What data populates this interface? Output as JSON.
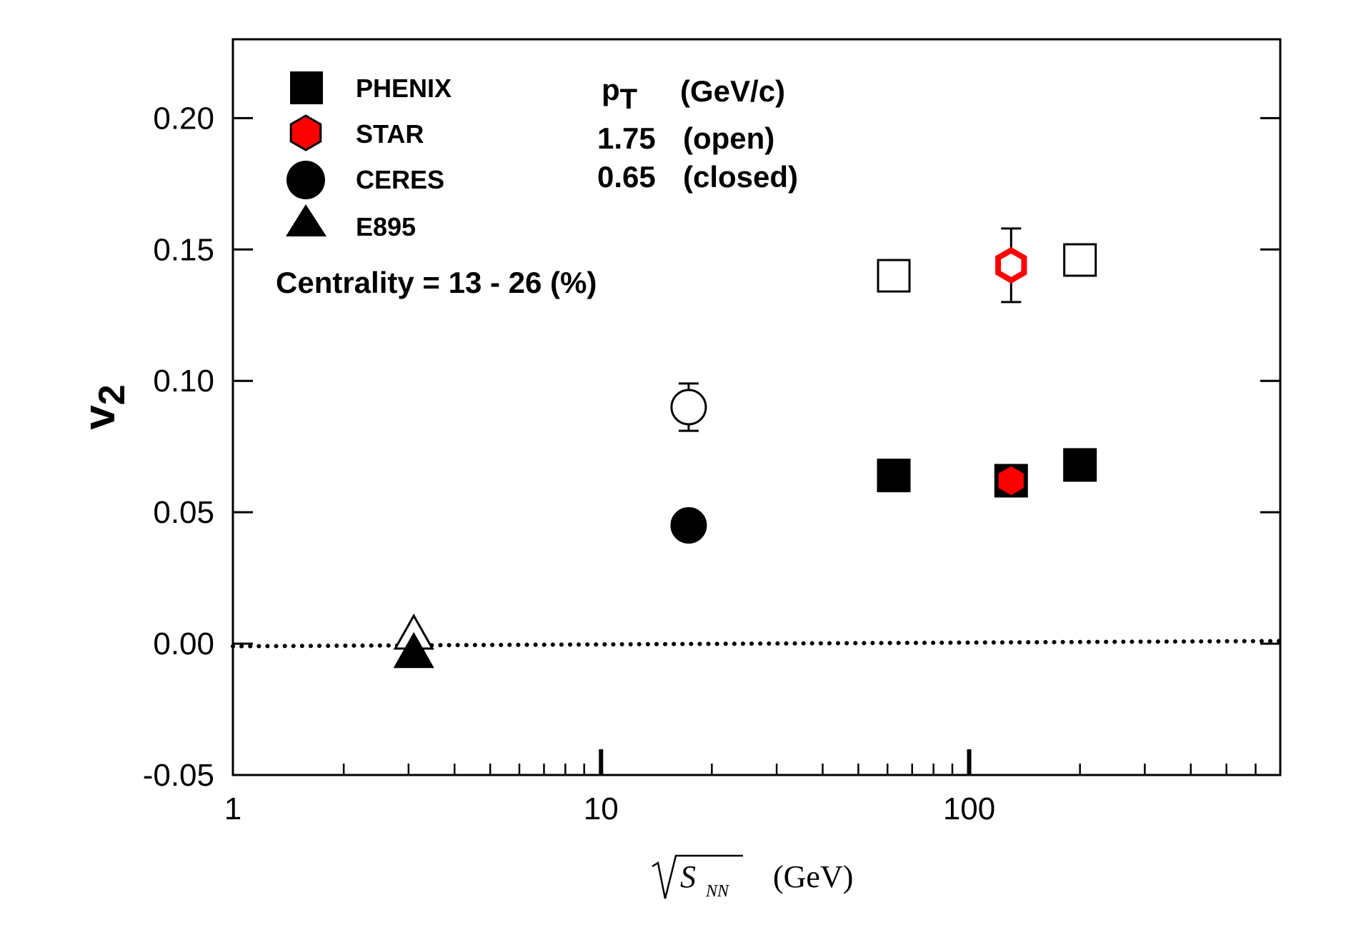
{
  "chart_data": {
    "type": "scatter",
    "xscale": "log",
    "xlim": [
      1,
      700
    ],
    "ylim": [
      -0.05,
      0.23
    ],
    "x_ticks": [
      {
        "value": 1,
        "label": "1"
      },
      {
        "value": 10,
        "label": "10"
      },
      {
        "value": 100,
        "label": "100"
      }
    ],
    "y_ticks": [
      {
        "value": -0.05,
        "label": "-0.05"
      },
      {
        "value": 0.0,
        "label": "0.00"
      },
      {
        "value": 0.05,
        "label": "0.05"
      },
      {
        "value": 0.1,
        "label": "0.10"
      },
      {
        "value": 0.15,
        "label": "0.15"
      },
      {
        "value": 0.2,
        "label": "0.20"
      }
    ],
    "ylabel": {
      "main": "v",
      "sub": "2"
    },
    "xlabel": {
      "sym": "S",
      "sub": "NN",
      "unit": "(GeV)"
    },
    "legend_position": "top-left",
    "legend": [
      {
        "name": "PHENIX",
        "marker": "square"
      },
      {
        "name": "STAR",
        "marker": "hexagon"
      },
      {
        "name": "CERES",
        "marker": "circle"
      },
      {
        "name": "E895",
        "marker": "triangle"
      }
    ],
    "annotation": {
      "pt_symbol": "p",
      "pt_sub": "T",
      "pt_unit": "(GeV/c)",
      "open_value": "1.75",
      "open_label": "(open)",
      "closed_value": "0.65",
      "closed_label": "(closed)",
      "centrality": "Centrality = 13 - 26 (%)"
    },
    "series": [
      {
        "name": "PHENIX",
        "marker": "square",
        "filled": false,
        "color": "#000000",
        "points": [
          {
            "x": 62.4,
            "y": 0.14
          },
          {
            "x": 200,
            "y": 0.146
          }
        ]
      },
      {
        "name": "PHENIX",
        "marker": "square",
        "filled": true,
        "color": "#000000",
        "points": [
          {
            "x": 62.4,
            "y": 0.064
          },
          {
            "x": 130,
            "y": 0.062
          },
          {
            "x": 200,
            "y": 0.068
          }
        ]
      },
      {
        "name": "STAR",
        "marker": "hexagon",
        "filled": false,
        "color": "#ff0000",
        "points": [
          {
            "x": 130,
            "y": 0.144,
            "err": 0.014
          }
        ]
      },
      {
        "name": "STAR",
        "marker": "hexagon",
        "filled": true,
        "color": "#ff0000",
        "points": [
          {
            "x": 130,
            "y": 0.062
          }
        ]
      },
      {
        "name": "CERES",
        "marker": "circle",
        "filled": false,
        "color": "#000000",
        "points": [
          {
            "x": 17.3,
            "y": 0.09,
            "err": 0.009
          }
        ]
      },
      {
        "name": "CERES",
        "marker": "circle",
        "filled": true,
        "color": "#000000",
        "points": [
          {
            "x": 17.3,
            "y": 0.045
          }
        ]
      },
      {
        "name": "E895",
        "marker": "triangle",
        "filled": false,
        "color": "#000000",
        "points": [
          {
            "x": 3.1,
            "y": 0.003
          }
        ]
      },
      {
        "name": "E895",
        "marker": "triangle",
        "filled": true,
        "color": "#000000",
        "points": [
          {
            "x": 3.1,
            "y": -0.004
          }
        ]
      }
    ],
    "reference_line": {
      "style": "dotted",
      "points": [
        {
          "x": 1,
          "y": -0.001
        },
        {
          "x": 700,
          "y": 0.001
        }
      ]
    }
  }
}
